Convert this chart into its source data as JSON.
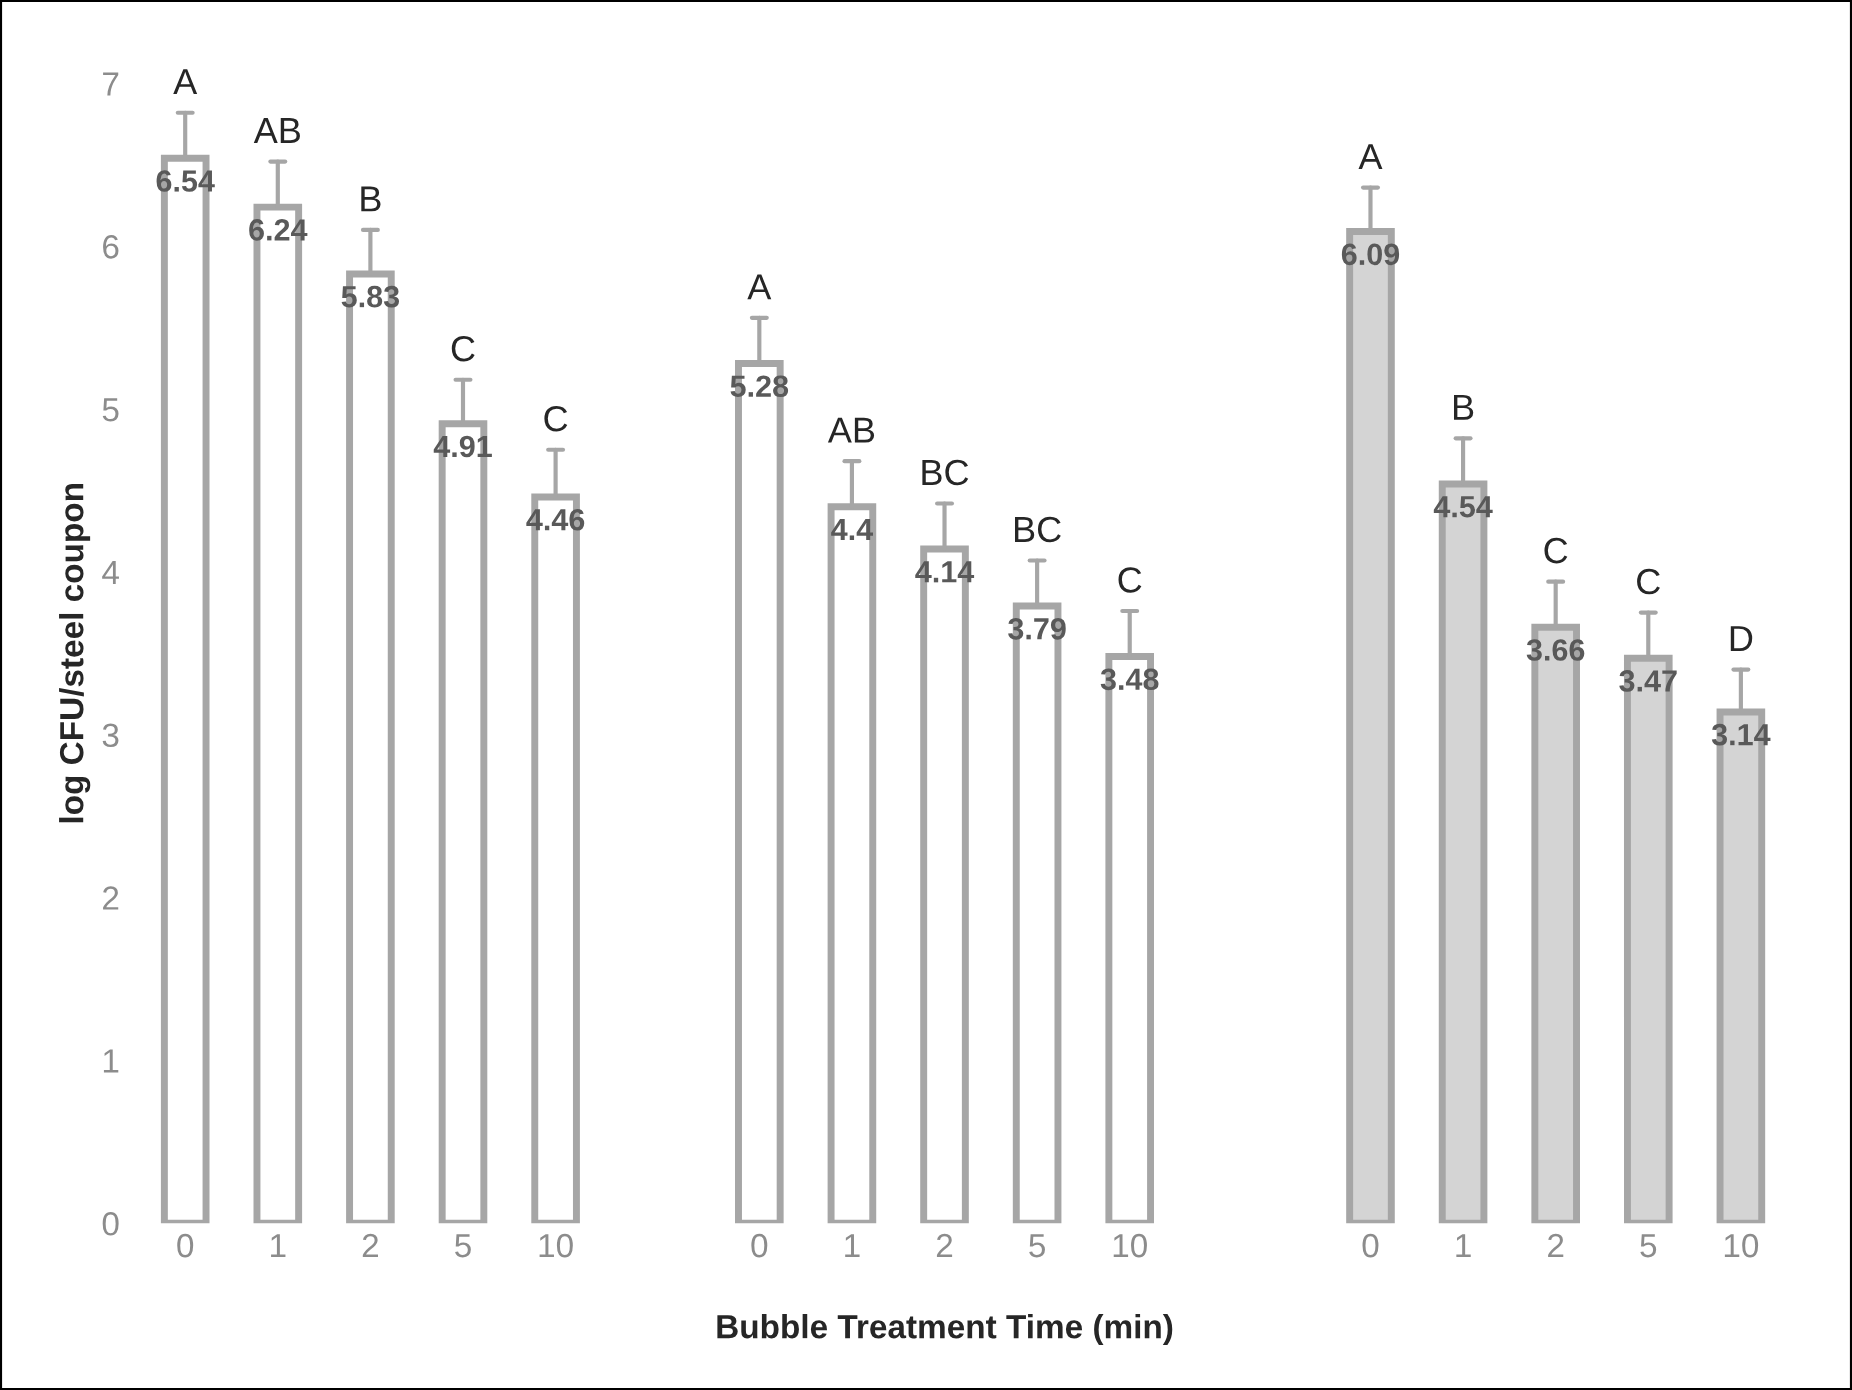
{
  "chart_data": [
    {
      "type": "bar",
      "ylabel": "log CFU/steel coupon",
      "categories": [
        "0",
        "1",
        "2",
        "5",
        "10"
      ],
      "values": [
        6.54,
        6.24,
        5.83,
        4.91,
        4.46
      ],
      "color": "#ffffff",
      "errors": [
        [
          6.54,
          6.82
        ],
        [
          6.24,
          6.52
        ],
        [
          5.83,
          6.1
        ],
        [
          4.91,
          5.18
        ],
        [
          4.46,
          4.75
        ]
      ],
      "data_labels": true,
      "ylim": [
        0,
        7
      ],
      "yticks": [
        0,
        1,
        2,
        3,
        4,
        5,
        6,
        7
      ],
      "grid": false,
      "annotations": [
        {
          "text": "A",
          "x": "0",
          "y": 6.82
        },
        {
          "text": "AB",
          "x": "1",
          "y": 6.52
        },
        {
          "text": "B",
          "x": "2",
          "y": 6.1
        },
        {
          "text": "C",
          "x": "5",
          "y": 5.18
        },
        {
          "text": "C",
          "x": "10",
          "y": 4.75
        }
      ]
    },
    {
      "type": "bar",
      "xlabel": "Bubble Treatment Time (min)",
      "categories": [
        "0",
        "1",
        "2",
        "5",
        "10"
      ],
      "values": [
        5.28,
        4.4,
        4.14,
        3.79,
        3.48
      ],
      "color": "#ffffff",
      "errors": [
        [
          5.28,
          5.56
        ],
        [
          4.4,
          4.68
        ],
        [
          4.14,
          4.42
        ],
        [
          3.79,
          4.07
        ],
        [
          3.48,
          3.76
        ]
      ],
      "data_labels": true,
      "ylim": [
        0,
        7
      ],
      "tick_labels": "x",
      "grid": false,
      "annotations": [
        {
          "text": "A",
          "x": "0",
          "y": 5.56
        },
        {
          "text": "AB",
          "x": "1",
          "y": 4.68
        },
        {
          "text": "BC",
          "x": "2",
          "y": 4.42
        },
        {
          "text": "BC",
          "x": "5",
          "y": 4.07
        },
        {
          "text": "C",
          "x": "10",
          "y": 3.76
        }
      ]
    },
    {
      "type": "bar",
      "categories": [
        "0",
        "1",
        "2",
        "5",
        "10"
      ],
      "values": [
        6.09,
        4.54,
        3.66,
        3.47,
        3.14
      ],
      "color": "#d4d4d4",
      "errors": [
        [
          6.09,
          6.36
        ],
        [
          4.54,
          4.82
        ],
        [
          3.66,
          3.94
        ],
        [
          3.47,
          3.75
        ],
        [
          3.14,
          3.4
        ]
      ],
      "data_labels": true,
      "ylim": [
        0,
        7
      ],
      "tick_labels": "x",
      "grid": false,
      "annotations": [
        {
          "text": "A",
          "x": "0",
          "y": 6.36
        },
        {
          "text": "B",
          "x": "1",
          "y": 4.82
        },
        {
          "text": "C",
          "x": "2",
          "y": 3.94
        },
        {
          "text": "C",
          "x": "5",
          "y": 3.75
        },
        {
          "text": "D",
          "x": "10",
          "y": 3.4
        }
      ]
    }
  ]
}
